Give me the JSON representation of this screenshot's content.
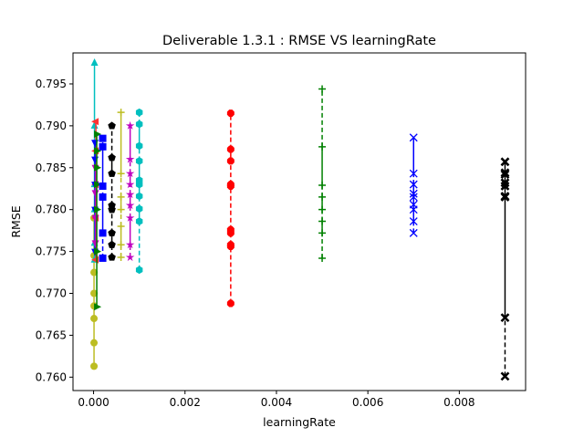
{
  "chart_data": {
    "type": "scatter",
    "title": "Deliverable 1.3.1 : RMSE VS learningRate",
    "xlabel": "learningRate",
    "ylabel": "RMSE",
    "xlim": [
      -0.00045,
      0.00945
    ],
    "ylim": [
      0.7584,
      0.7987
    ],
    "xticks": [
      0.0,
      0.002,
      0.004,
      0.006,
      0.008
    ],
    "xtick_labels": [
      "0.000",
      "0.002",
      "0.004",
      "0.006",
      "0.008"
    ],
    "yticks": [
      0.76,
      0.765,
      0.77,
      0.775,
      0.78,
      0.785,
      0.79,
      0.795
    ],
    "ytick_labels": [
      "0.760",
      "0.765",
      "0.770",
      "0.775",
      "0.780",
      "0.785",
      "0.790",
      "0.795"
    ],
    "grid": false,
    "legend": "none",
    "series": [
      {
        "color": "#bcbd22",
        "marker": "circle",
        "x": 1e-05,
        "y": [
          0.7613,
          0.7641,
          0.767,
          0.7685,
          0.77,
          0.7725,
          0.7745,
          0.779
        ]
      },
      {
        "color": "#00bfbf",
        "marker": "triangle-up",
        "x": 2e-05,
        "y": [
          0.774,
          0.776,
          0.78,
          0.783,
          0.79,
          0.7975
        ]
      },
      {
        "color": "#ff3333",
        "marker": "triangle-left",
        "x": 5e-05,
        "y": [
          0.774,
          0.779,
          0.783,
          0.787,
          0.7905
        ]
      },
      {
        "color": "#0000ff",
        "marker": "triangle-down",
        "x": 3e-05,
        "y": [
          0.775,
          0.78,
          0.783,
          0.786,
          0.788
        ]
      },
      {
        "color": "#bf00bf",
        "marker": "triangle-down",
        "x": 4e-05,
        "y": [
          0.776,
          0.779,
          0.782,
          0.785
        ]
      },
      {
        "color": "#008000",
        "marker": "triangle-right",
        "x": 7e-05,
        "y": [
          0.7684,
          0.775,
          0.78,
          0.783,
          0.785,
          0.787,
          0.789
        ]
      },
      {
        "color": "#0000ff",
        "marker": "square",
        "x": 0.0002,
        "y": [
          0.7742,
          0.7772,
          0.7815,
          0.7828,
          0.7875,
          0.7885
        ]
      },
      {
        "color": "#000000",
        "marker": "pentagon",
        "x": 0.0004,
        "y": [
          0.7743,
          0.7758,
          0.7772,
          0.78,
          0.7805,
          0.7843,
          0.7862,
          0.79
        ]
      },
      {
        "color": "#bcbd22",
        "marker": "plus",
        "x": 0.0006,
        "y": [
          0.7743,
          0.7758,
          0.778,
          0.78,
          0.7815,
          0.7843,
          0.7916
        ]
      },
      {
        "color": "#bf00bf",
        "marker": "star",
        "x": 0.0008,
        "y": [
          0.7743,
          0.7758,
          0.779,
          0.7805,
          0.7818,
          0.783,
          0.7843,
          0.786,
          0.79
        ]
      },
      {
        "color": "#00bfbf",
        "marker": "hexagon",
        "x": 0.001,
        "y": [
          0.7728,
          0.7786,
          0.7801,
          0.7816,
          0.783,
          0.7835,
          0.7858,
          0.7876,
          0.7902,
          0.7916
        ]
      },
      {
        "color": "#ff0000",
        "marker": "octagon",
        "x": 0.003,
        "y": [
          0.7688,
          0.7756,
          0.7758,
          0.7772,
          0.7776,
          0.7828,
          0.783,
          0.7858,
          0.7872,
          0.7915
        ]
      },
      {
        "color": "#008000",
        "marker": "tri-line",
        "x": 0.005,
        "y": [
          0.7742,
          0.7772,
          0.7786,
          0.78,
          0.7815,
          0.7829,
          0.7875,
          0.7944
        ]
      },
      {
        "color": "#0000ff",
        "marker": "x",
        "x": 0.007,
        "y": [
          0.7772,
          0.7786,
          0.78,
          0.7806,
          0.7815,
          0.7819,
          0.783,
          0.7843,
          0.7886
        ]
      },
      {
        "color": "#000000",
        "marker": "x-bold",
        "x": 0.009,
        "y": [
          0.7601,
          0.7671,
          0.7815,
          0.7816,
          0.7828,
          0.7832,
          0.7842,
          0.7844,
          0.7857
        ]
      }
    ]
  }
}
